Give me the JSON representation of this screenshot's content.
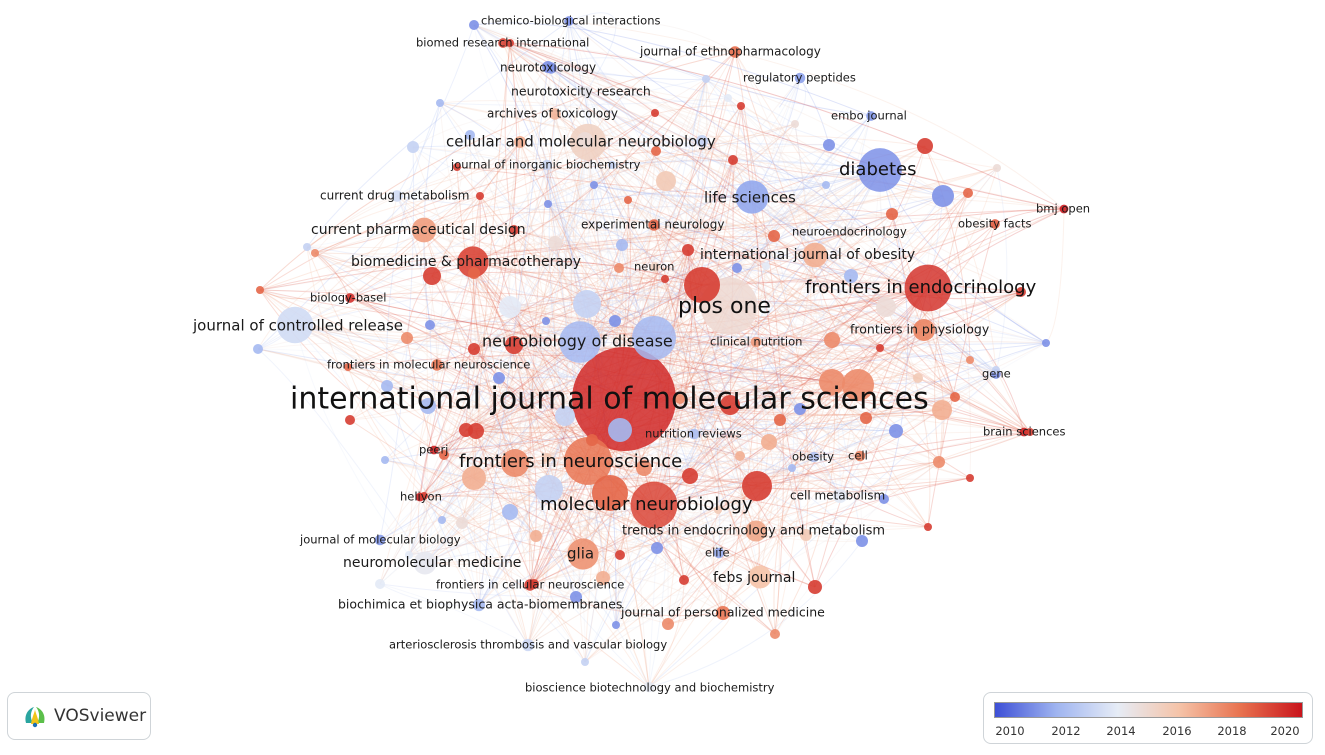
{
  "app": {
    "brand_name": "VOSviewer"
  },
  "legend": {
    "ticks": [
      "2010",
      "2012",
      "2014",
      "2016",
      "2018",
      "2020"
    ],
    "year_range": [
      2009.5,
      2021
    ],
    "color_scale": [
      "#3d4fd6",
      "#9fb4f0",
      "#e6ecf6",
      "#f5c3a8",
      "#e8724f",
      "#c9141c"
    ]
  },
  "map": {
    "nodes": [
      {
        "label": "international journal of molecular sciences",
        "year": 2020.5,
        "weight": 10
      },
      {
        "label": "plos one",
        "year": 2015.2,
        "weight": 5.5
      },
      {
        "label": "frontiers in endocrinology",
        "year": 2020.2,
        "weight": 4.5
      },
      {
        "label": "diabetes",
        "year": 2011.0,
        "weight": 4.2
      },
      {
        "label": "life sciences",
        "year": 2011.5,
        "weight": 3.2
      },
      {
        "label": "frontiers in neuroscience",
        "year": 2018.6,
        "weight": 4.6
      },
      {
        "label": "molecular neurobiology",
        "year": 2019.8,
        "weight": 4.5
      },
      {
        "label": "neurobiology of disease",
        "year": 2012.0,
        "weight": 4.0
      },
      {
        "label": "cellular and molecular neurobiology",
        "year": 2015.6,
        "weight": 3.5
      },
      {
        "label": "journal of controlled release",
        "year": 2013.4,
        "weight": 3.5
      },
      {
        "label": "current pharmaceutical design",
        "year": 2017.5,
        "weight": 2.8
      },
      {
        "label": "biomedicine & pharmacotherapy",
        "year": 2019.8,
        "weight": 3.0
      },
      {
        "label": "international journal of obesity",
        "year": 2017.0,
        "weight": 2.8
      },
      {
        "label": "frontiers in physiology",
        "year": 2018.2,
        "weight": 2.5
      },
      {
        "label": "glia",
        "year": 2017.8,
        "weight": 3.0
      },
      {
        "label": "neuromolecular medicine",
        "year": 2014.3,
        "weight": 2.6
      },
      {
        "label": "febs journal",
        "year": 2016.4,
        "weight": 2.6
      },
      {
        "label": "trends in endocrinology and metabolism",
        "year": 2017.2,
        "weight": 2.4
      },
      {
        "label": "cell metabolism",
        "year": 2014.0,
        "weight": 1.6
      },
      {
        "label": "journal of personalized medicine",
        "year": 2018.6,
        "weight": 1.6
      },
      {
        "label": "biochimica et biophysica acta-biomembranes",
        "year": 2012.0,
        "weight": 1.4
      },
      {
        "label": "arteriosclerosis thrombosis and vascular biology",
        "year": 2013.2,
        "weight": 1.4
      },
      {
        "label": "bioscience biotechnology and biochemistry",
        "year": 2014.2,
        "weight": 1.2
      },
      {
        "label": "frontiers in cellular neuroscience",
        "year": 2020.0,
        "weight": 1.3
      },
      {
        "label": "journal of molecular biology",
        "year": 2011.2,
        "weight": 1.2
      },
      {
        "label": "heliyon",
        "year": 2020.6,
        "weight": 1.0
      },
      {
        "label": "peerj",
        "year": 2020.6,
        "weight": 1.0
      },
      {
        "label": "frontiers in molecular neuroscience",
        "year": 2018.6,
        "weight": 1.3
      },
      {
        "label": "biology-basel",
        "year": 2020.3,
        "weight": 1.1
      },
      {
        "label": "current drug metabolism",
        "year": 2013.4,
        "weight": 1.3
      },
      {
        "label": "journal of inorganic biochemistry",
        "year": 2013.2,
        "weight": 1.2
      },
      {
        "label": "archives of toxicology",
        "year": 2016.8,
        "weight": 1.3
      },
      {
        "label": "neurotoxicity research",
        "year": 2014.4,
        "weight": 1.3
      },
      {
        "label": "neurotoxicology",
        "year": 2011.0,
        "weight": 1.3
      },
      {
        "label": "biomed research international",
        "year": 2019.8,
        "weight": 1.1
      },
      {
        "label": "chemico-biological interactions",
        "year": 2011.0,
        "weight": 1.1
      },
      {
        "label": "journal of ethnopharmacology",
        "year": 2018.8,
        "weight": 1.3
      },
      {
        "label": "regulatory peptides",
        "year": 2011.4,
        "weight": 1.2
      },
      {
        "label": "embo journal",
        "year": 2011.2,
        "weight": 1.1
      },
      {
        "label": "experimental neurology",
        "year": 2019.0,
        "weight": 1.3
      },
      {
        "label": "neuron",
        "year": 2015.6,
        "weight": 1.1
      },
      {
        "label": "neuroendocrinology",
        "year": 2014.8,
        "weight": 1.2
      },
      {
        "label": "obesity facts",
        "year": 2019.2,
        "weight": 1.1
      },
      {
        "label": "bmj open",
        "year": 2020.8,
        "weight": 1.0
      },
      {
        "label": "clinical nutrition",
        "year": 2017.6,
        "weight": 1.2
      },
      {
        "label": "gene",
        "year": 2011.0,
        "weight": 1.1
      },
      {
        "label": "brain sciences",
        "year": 2020.6,
        "weight": 1.0
      },
      {
        "label": "nutrition reviews",
        "year": 2012.2,
        "weight": 1.2
      },
      {
        "label": "obesity",
        "year": 2012.4,
        "weight": 1.2
      },
      {
        "label": "cell",
        "year": 2018.2,
        "weight": 1.2
      },
      {
        "label": "elife",
        "year": 2011.6,
        "weight": 1.2
      }
    ]
  }
}
